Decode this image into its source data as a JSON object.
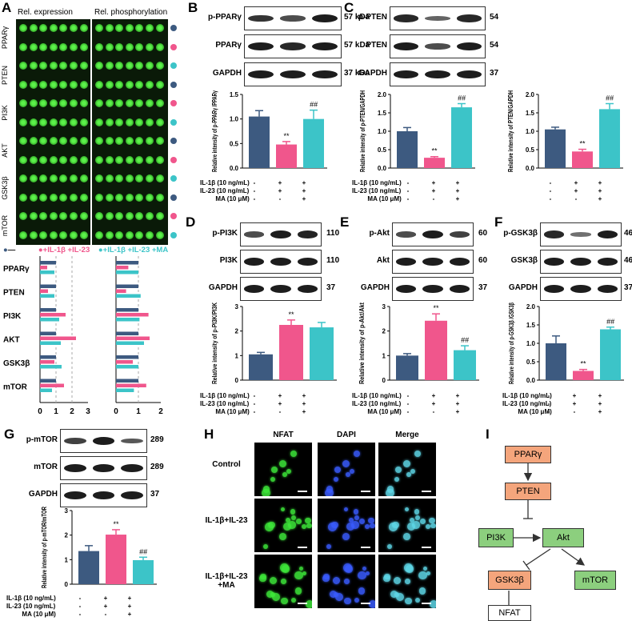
{
  "panels": {
    "A": "A",
    "B": "B",
    "C": "C",
    "D": "D",
    "E": "E",
    "F": "F",
    "G": "G",
    "H": "H",
    "I": "I"
  },
  "arrayA": {
    "col_expression": "Rel. expression",
    "col_phosphorylation": "Rel. phosphorylation",
    "proteins": [
      "PPARγ",
      "PTEN",
      "PI3K",
      "AKT",
      "GSK3β",
      "mTOR"
    ],
    "legend": [
      "—",
      "+IL-1β +IL-23",
      "+IL-1β +IL-23 +MA"
    ],
    "colors": {
      "ctrl": "#3d5a80",
      "il": "#f0568c",
      "ma": "#3cc4c8"
    },
    "bar_expression": [
      [
        1,
        0.45,
        0.9
      ],
      [
        1,
        0.5,
        0.9
      ],
      [
        1,
        1.6,
        1.2
      ],
      [
        1,
        2.25,
        1.3
      ],
      [
        1,
        0.9,
        1.35
      ],
      [
        1,
        1.5,
        0.75
      ]
    ],
    "bar_phosphorylation": [
      [
        1,
        0.55,
        1.0
      ],
      [
        1,
        0.45,
        1.1
      ],
      [
        1,
        1.45,
        1.05
      ],
      [
        1,
        1.5,
        1.25
      ],
      [
        1,
        0.75,
        1.0
      ],
      [
        1,
        1.35,
        0.8
      ]
    ],
    "x_ticks_expr": [
      "0",
      "1",
      "2",
      "3"
    ],
    "x_ticks_phos": [
      "0",
      "1",
      "2"
    ]
  },
  "blots": {
    "B": [
      {
        "label": "p-PPARγ",
        "kda": "57 kDa"
      },
      {
        "label": "PPARγ",
        "kda": "57 kDa"
      },
      {
        "label": "GAPDH",
        "kda": "37 kDa"
      }
    ],
    "C": [
      {
        "label": "p-PTEN",
        "kda": "54"
      },
      {
        "label": "PTEN",
        "kda": "54"
      },
      {
        "label": "GAPDH",
        "kda": "37"
      }
    ],
    "D": [
      {
        "label": "p-PI3K",
        "kda": "110"
      },
      {
        "label": "PI3K",
        "kda": "110"
      },
      {
        "label": "GAPDH",
        "kda": "37"
      }
    ],
    "E": [
      {
        "label": "p-Akt",
        "kda": "60"
      },
      {
        "label": "Akt",
        "kda": "60"
      },
      {
        "label": "GAPDH",
        "kda": "37"
      }
    ],
    "F": [
      {
        "label": "p-GSK3β",
        "kda": "46"
      },
      {
        "label": "GSK3β",
        "kda": "46"
      },
      {
        "label": "GAPDH",
        "kda": "37"
      }
    ],
    "G": [
      {
        "label": "p-mTOR",
        "kda": "289"
      },
      {
        "label": "mTOR",
        "kda": "289"
      },
      {
        "label": "GAPDH",
        "kda": "37"
      }
    ]
  },
  "treatment": {
    "rows": [
      "IL-1β  (10 ng/mL)",
      "IL-23 (10 ng/mL)",
      "MA (10 μM)"
    ],
    "signs": [
      [
        "-",
        "+",
        "+"
      ],
      [
        "-",
        "+",
        "+"
      ],
      [
        "-",
        "-",
        "+"
      ]
    ]
  },
  "chart_data": [
    {
      "type": "bar",
      "panel": "B",
      "ylabel": "Relative intensity of p-PPARγ /PPARγ",
      "values": [
        1.05,
        0.48,
        1.0
      ],
      "errors": [
        0.12,
        0.06,
        0.18
      ],
      "ylim": [
        0,
        1.5
      ],
      "yticks": [
        "0.0",
        "0.5",
        "1.0",
        "1.5"
      ],
      "sig": [
        "",
        "**",
        "##"
      ]
    },
    {
      "type": "bar",
      "panel": "C1",
      "ylabel": "Relative intensity of p-PTEN/GAPDH",
      "values": [
        1.0,
        0.28,
        1.65
      ],
      "errors": [
        0.1,
        0.03,
        0.1
      ],
      "ylim": [
        0,
        2.0
      ],
      "yticks": [
        "0.0",
        "0.5",
        "1.0",
        "1.5",
        "2.0"
      ],
      "sig": [
        "",
        "**",
        "##"
      ]
    },
    {
      "type": "bar",
      "panel": "C2",
      "ylabel": "Relative intensity of PTEN/GAPDH",
      "values": [
        1.05,
        0.45,
        1.6
      ],
      "errors": [
        0.06,
        0.06,
        0.15
      ],
      "ylim": [
        0,
        2.0
      ],
      "yticks": [
        "0.0",
        "0.5",
        "1.0",
        "1.5",
        "2.0"
      ],
      "sig": [
        "",
        "**",
        "##"
      ]
    },
    {
      "type": "bar",
      "panel": "D",
      "ylabel": "Relative intensity of p-PI3K/PI3K",
      "values": [
        1.05,
        2.25,
        2.15
      ],
      "errors": [
        0.08,
        0.2,
        0.2
      ],
      "ylim": [
        0,
        3
      ],
      "yticks": [
        "0",
        "1",
        "2",
        "3"
      ],
      "sig": [
        "",
        "**",
        ""
      ]
    },
    {
      "type": "bar",
      "panel": "E",
      "ylabel": "Relative intensity of p-Akt/Akt",
      "values": [
        1.0,
        2.42,
        1.22
      ],
      "errors": [
        0.08,
        0.28,
        0.18
      ],
      "ylim": [
        0,
        3
      ],
      "yticks": [
        "0",
        "1",
        "2",
        "3"
      ],
      "sig": [
        "",
        "**",
        "##"
      ]
    },
    {
      "type": "bar",
      "panel": "F",
      "ylabel": "Relative intensity of p-GSK3β /GSK3β",
      "values": [
        1.0,
        0.25,
        1.38
      ],
      "errors": [
        0.2,
        0.04,
        0.06
      ],
      "ylim": [
        0,
        2.0
      ],
      "yticks": [
        "0.0",
        "0.5",
        "1.0",
        "1.5",
        "2.0"
      ],
      "sig": [
        "",
        "**",
        "##"
      ]
    },
    {
      "type": "bar",
      "panel": "G",
      "ylabel": "Relative intensity of p-mTOR/mTOR",
      "values": [
        1.35,
        2.02,
        0.98
      ],
      "errors": [
        0.22,
        0.2,
        0.12
      ],
      "ylim": [
        0,
        3
      ],
      "yticks": [
        "0",
        "1",
        "2",
        "3"
      ],
      "sig": [
        "",
        "**",
        "##"
      ]
    }
  ],
  "imaging": {
    "cols": [
      "NFAT",
      "DAPI",
      "Merge"
    ],
    "rows": [
      "Control",
      "IL-1β+IL-23",
      "IL-1β+IL-23 +MA"
    ]
  },
  "pathway": {
    "nodes": {
      "pparg": "PPARγ",
      "pten": "PTEN",
      "pi3k": "PI3K",
      "akt": "Akt",
      "gsk3b": "GSK3β",
      "mtor": "mTOR",
      "nfat": "NFAT"
    },
    "colors": {
      "orange": "#f4a57c",
      "green": "#8ccf7e"
    }
  }
}
